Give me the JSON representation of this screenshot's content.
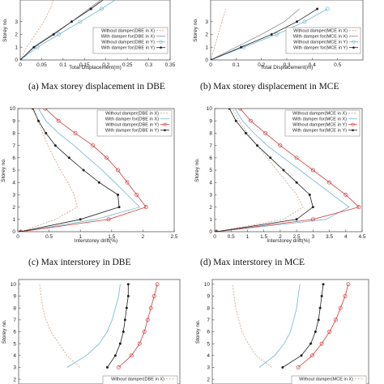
{
  "captions": [
    "(a)  Max storey displacement in DBE",
    "(b)  Max storey displacement in MCE",
    "(c)  Max interstorey in DBE",
    "(d)  Max interstorey in MCE"
  ],
  "colors": {
    "without_x": "#c8a488",
    "with_x": "#8c8c8c",
    "without_y": "#72b6cf",
    "with_y": "#d13b3b",
    "with_y_dark": "#222222"
  },
  "chart_data": [
    {
      "type": "line",
      "xlabel": "Total Displacement(m)",
      "ylabel": "Storey no.",
      "xlim": [
        0,
        0.35
      ],
      "ylim": [
        0,
        10
      ],
      "xticks": [
        "0",
        "0.05",
        "0.1",
        "0.15",
        "0.2",
        "0.25",
        "0.3",
        "0.35"
      ],
      "yticks": [
        "0",
        "1",
        "2",
        "3"
      ],
      "legend": [
        "Without damper(DBE in X)",
        "With damper for(DBE in X)",
        "Without damper(DBE in Y)",
        "With damper for(DBE in Y)"
      ],
      "series": [
        {
          "name": "Without damper(DBE in X)",
          "x": [
            0,
            0.015,
            0.035,
            0.055,
            0.07,
            0.08
          ],
          "y": [
            0,
            1,
            2,
            3,
            4,
            5
          ]
        },
        {
          "name": "With damper for(DBE in X)",
          "x": [
            0,
            0.03,
            0.075,
            0.12,
            0.16,
            0.2
          ],
          "y": [
            0,
            1,
            2,
            3,
            4,
            5
          ]
        },
        {
          "name": "Without damper(DBE in Y)",
          "x": [
            0,
            0.04,
            0.09,
            0.14,
            0.19,
            0.235
          ],
          "y": [
            0,
            1,
            2,
            3,
            4,
            5
          ]
        },
        {
          "name": "With damper for(DBE in Y)",
          "x": [
            0,
            0.032,
            0.078,
            0.12,
            0.165,
            0.205
          ],
          "y": [
            0,
            1,
            2,
            3,
            4,
            5
          ]
        }
      ]
    },
    {
      "type": "line",
      "xlabel": "Total Displacement(m)",
      "ylabel": "Storey no.",
      "xlim": [
        0,
        0.6
      ],
      "ylim": [
        0,
        10
      ],
      "xticks": [
        "0",
        "0.1",
        "0.2",
        "0.3",
        "0.4",
        "0.5"
      ],
      "yticks": [
        "0",
        "1",
        "2",
        "3"
      ],
      "legend": [
        "Without damper(MCE in X)",
        "With damper for(MCE in X)",
        "Without damper(MCE in Y)",
        "With damper for(MCE in Y)"
      ],
      "series": [
        {
          "name": "Without damper(MCE in X)",
          "x": [
            0,
            0.015,
            0.03,
            0.045,
            0.06
          ],
          "y": [
            0,
            1,
            2,
            3,
            4
          ]
        },
        {
          "name": "With damper for(MCE in X)",
          "x": [
            0,
            0.1,
            0.2,
            0.29,
            0.35
          ],
          "y": [
            0,
            1,
            2,
            3,
            4
          ]
        },
        {
          "name": "Without damper(MCE in Y)",
          "x": [
            0,
            0.13,
            0.26,
            0.37,
            0.46
          ],
          "y": [
            0,
            1,
            2,
            3,
            4
          ]
        },
        {
          "name": "With damper for(MCE in Y)",
          "x": [
            0,
            0.12,
            0.24,
            0.34,
            0.42
          ],
          "y": [
            0,
            1,
            2,
            3,
            4
          ]
        }
      ]
    },
    {
      "type": "line",
      "xlabel": "Interstorey drift(%)",
      "ylabel": "Storey no.",
      "xlim": [
        0,
        2.5
      ],
      "ylim": [
        0,
        10
      ],
      "xticks": [
        "0",
        "0.5",
        "1",
        "1.5",
        "2",
        "2.5"
      ],
      "yticks": [
        "0",
        "1",
        "2",
        "3",
        "4",
        "5",
        "6",
        "7",
        "8",
        "9",
        "10"
      ],
      "legend": [
        "Without damper(DBE in X)",
        "With damper for(DBE in X)",
        "Without damper(DBE in Y)",
        "With damper for(DBE in Y)"
      ],
      "series": [
        {
          "name": "Without damper(DBE in X)",
          "x": [
            0.05,
            0.6,
            0.95,
            0.9,
            0.8,
            0.68,
            0.58,
            0.48,
            0.4,
            0.32,
            0.26
          ],
          "y": [
            0,
            1,
            2,
            3,
            4,
            5,
            6,
            7,
            8,
            9,
            10
          ]
        },
        {
          "name": "With damper for(DBE in X)",
          "x": [
            0.05,
            1.25,
            1.95,
            1.75,
            1.55,
            1.35,
            1.12,
            0.9,
            0.65,
            0.45,
            0.33
          ],
          "y": [
            0,
            1,
            2,
            3,
            4,
            5,
            6,
            7,
            8,
            9,
            10
          ]
        },
        {
          "name": "Without damper(DBE in Y)",
          "x": [
            0.05,
            1.45,
            2.05,
            1.9,
            1.75,
            1.6,
            1.42,
            1.2,
            0.92,
            0.65,
            0.44
          ],
          "y": [
            0,
            1,
            2,
            3,
            4,
            5,
            6,
            7,
            8,
            9,
            10
          ]
        },
        {
          "name": "With damper for(DBE in Y)",
          "x": [
            0.04,
            1.0,
            1.62,
            1.6,
            1.3,
            1.05,
            0.82,
            0.6,
            0.45,
            0.33,
            0.24
          ],
          "y": [
            0,
            1,
            2,
            3,
            4,
            5,
            6,
            7,
            8,
            9,
            10
          ]
        }
      ]
    },
    {
      "type": "line",
      "xlabel": "Interstorey drift(%)",
      "ylabel": "Storey no.",
      "xlim": [
        0,
        4.5
      ],
      "ylim": [
        0,
        10
      ],
      "xticks": [
        "0",
        "0.5",
        "1",
        "1.5",
        "2",
        "2.5",
        "3",
        "3.5",
        "4",
        "4.5"
      ],
      "yticks": [
        "0",
        "1",
        "2",
        "3",
        "4",
        "5",
        "6",
        "7",
        "8",
        "9",
        "10"
      ],
      "legend": [
        "Without damper(MCE in X)",
        "With damper for(MCE in X)",
        "Without damper(MCE in Y)",
        "With damper for(MCE in Y)"
      ],
      "series": [
        {
          "name": "Without damper(MCE in X)",
          "x": [
            0.05,
            2.1,
            2.7,
            2.5,
            2.2,
            1.9,
            1.6,
            1.3,
            1.0,
            0.75,
            0.55
          ],
          "y": [
            0,
            1,
            2,
            3,
            4,
            5,
            6,
            7,
            8,
            9,
            10
          ]
        },
        {
          "name": "With damper for(MCE in X)",
          "x": [
            0.05,
            3.4,
            4.1,
            3.6,
            3.1,
            2.6,
            2.1,
            1.6,
            1.2,
            0.85,
            0.62
          ],
          "y": [
            0,
            1,
            2,
            3,
            4,
            5,
            6,
            7,
            8,
            9,
            10
          ]
        },
        {
          "name": "Without damper(MCE in Y)",
          "x": [
            0.05,
            3.0,
            4.4,
            4.0,
            3.5,
            3.0,
            2.5,
            2.0,
            1.55,
            1.1,
            0.78
          ],
          "y": [
            0,
            1,
            2,
            3,
            4,
            5,
            6,
            7,
            8,
            9,
            10
          ]
        },
        {
          "name": "With damper for(MCE in Y)",
          "x": [
            0.05,
            2.5,
            3.0,
            2.9,
            2.5,
            2.1,
            1.7,
            1.3,
            0.95,
            0.65,
            0.45
          ],
          "y": [
            0,
            1,
            2,
            3,
            4,
            5,
            6,
            7,
            8,
            9,
            10
          ]
        }
      ]
    },
    {
      "type": "line",
      "ylabel": "Storey no.",
      "ylim": [
        0,
        10
      ],
      "yticks": [
        "2",
        "3",
        "4",
        "5",
        "6",
        "7",
        "8",
        "9",
        "10"
      ],
      "legend": [
        "Without damper(DBE in X)"
      ],
      "series": [
        {
          "name": "Without damper(DBE in X)",
          "x": [
            0.38,
            0.3,
            0.25,
            0.2,
            0.17,
            0.15,
            0.14,
            0.13
          ],
          "y": [
            3,
            4,
            5,
            6,
            7,
            8,
            9,
            10
          ]
        },
        {
          "x": [
            0.55,
            0.6,
            0.63,
            0.65,
            0.66,
            0.67,
            0.68,
            0.68
          ],
          "y": [
            3,
            4,
            5,
            6,
            7,
            8,
            9,
            10
          ]
        },
        {
          "x": [
            0.62,
            0.7,
            0.75,
            0.78,
            0.8,
            0.82,
            0.84,
            0.86
          ],
          "y": [
            3,
            4,
            5,
            6,
            7,
            8,
            9,
            10
          ]
        },
        {
          "x": [
            0.3,
            0.42,
            0.5,
            0.55,
            0.58,
            0.6,
            0.62,
            0.63
          ],
          "y": [
            3,
            4,
            5,
            6,
            7,
            8,
            9,
            10
          ]
        }
      ]
    },
    {
      "type": "line",
      "ylabel": "Storey no.",
      "ylim": [
        0,
        10
      ],
      "yticks": [
        "2",
        "3",
        "4",
        "5",
        "6",
        "7",
        "8",
        "9",
        "10"
      ],
      "legend": [
        "Without damper(MCE in X)"
      ],
      "series": [
        {
          "name": "Without damper(MCE in X)",
          "x": [
            0.38,
            0.28,
            0.23,
            0.19,
            0.17,
            0.15,
            0.14,
            0.13
          ],
          "y": [
            3,
            4,
            5,
            6,
            7,
            8,
            9,
            10
          ]
        },
        {
          "x": [
            0.45,
            0.57,
            0.63,
            0.66,
            0.68,
            0.69,
            0.7,
            0.71
          ],
          "y": [
            3,
            4,
            5,
            6,
            7,
            8,
            9,
            10
          ]
        },
        {
          "x": [
            0.55,
            0.64,
            0.7,
            0.75,
            0.79,
            0.82,
            0.85,
            0.87
          ],
          "y": [
            3,
            4,
            5,
            6,
            7,
            8,
            9,
            10
          ]
        },
        {
          "x": [
            0.3,
            0.4,
            0.46,
            0.5,
            0.52,
            0.54,
            0.55,
            0.56
          ],
          "y": [
            3,
            4,
            5,
            6,
            7,
            8,
            9,
            10
          ]
        }
      ]
    }
  ]
}
